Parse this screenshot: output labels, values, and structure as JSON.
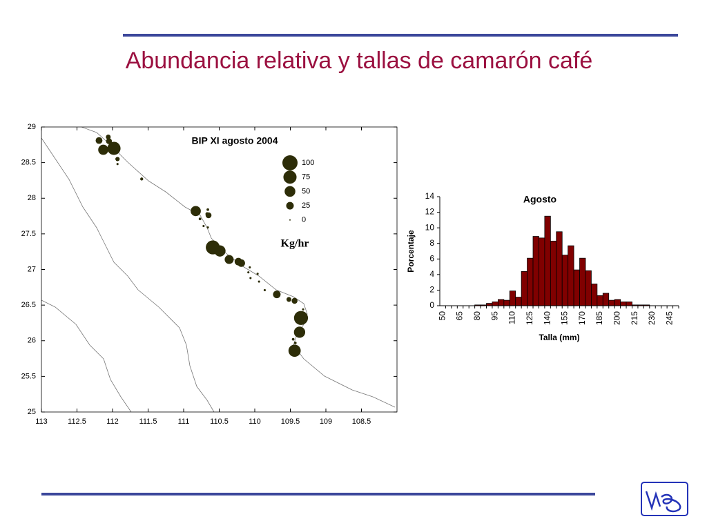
{
  "title": "Abundancia relativa y tallas de camarón café",
  "chart_data": [
    {
      "type": "bubble",
      "title": "BIP XI agosto 2004",
      "size_label": "Kg/hr",
      "color": "#2d2d08",
      "xlim": [
        113,
        108
      ],
      "xticks": [
        113,
        112.5,
        112,
        111.5,
        111,
        110.5,
        110,
        109.5,
        109,
        108.5
      ],
      "ylim": [
        25,
        29
      ],
      "yticks": [
        25,
        25.5,
        26,
        26.5,
        27,
        27.5,
        28,
        28.5,
        29
      ],
      "size_legend": [
        100,
        75,
        50,
        25,
        0
      ],
      "x": [
        112.19,
        112.06,
        112.05,
        112.13,
        111.98,
        111.93,
        111.93,
        111.59,
        110.83,
        110.77,
        110.67,
        110.66,
        110.65,
        110.72,
        110.66,
        110.59,
        110.49,
        110.36,
        110.23,
        110.19,
        110.07,
        110.09,
        110.06,
        109.96,
        109.94,
        109.86,
        109.69,
        109.52,
        109.44,
        109.35,
        109.37,
        109.32,
        109.46,
        109.43,
        109.44
      ],
      "y": [
        28.81,
        28.86,
        28.8,
        28.68,
        28.7,
        28.55,
        28.48,
        28.27,
        27.82,
        27.71,
        27.78,
        27.84,
        27.76,
        27.61,
        27.59,
        27.31,
        27.26,
        27.14,
        27.11,
        27.09,
        27.03,
        26.96,
        26.88,
        26.94,
        26.83,
        26.71,
        26.65,
        26.58,
        26.56,
        26.32,
        26.12,
        26.44,
        26.02,
        25.97,
        25.86
      ],
      "sizes": [
        20,
        10,
        15,
        45,
        75,
        8,
        2,
        4,
        45,
        3,
        5,
        3,
        15,
        2,
        2,
        85,
        55,
        35,
        25,
        25,
        2,
        2,
        2,
        2,
        2,
        2,
        25,
        10,
        15,
        85,
        55,
        2,
        3,
        3,
        65
      ]
    },
    {
      "type": "bar",
      "title": "Agosto",
      "x_label": "Talla (mm)",
      "y_label": "Porcentaje",
      "color": "#800000",
      "categories": [
        "50",
        null,
        null,
        "65",
        null,
        null,
        "80",
        null,
        null,
        "95",
        null,
        null,
        "110",
        null,
        null,
        "125",
        null,
        null,
        "140",
        null,
        null,
        "155",
        null,
        null,
        "170",
        null,
        null,
        "185",
        null,
        null,
        "200",
        null,
        null,
        "215",
        null,
        null,
        "230",
        null,
        null,
        "245",
        null
      ],
      "values": [
        0,
        0,
        0,
        0,
        0,
        0,
        0.1,
        0.1,
        0.3,
        0.5,
        0.8,
        0.7,
        1.9,
        1.1,
        4.4,
        6.1,
        8.9,
        8.7,
        11.5,
        8.3,
        9.5,
        6.5,
        7.7,
        4.6,
        6.1,
        4.5,
        2.8,
        1.3,
        1.6,
        0.7,
        0.8,
        0.5,
        0.5,
        0.1,
        0.1,
        0.1,
        0,
        0,
        0,
        0,
        0
      ],
      "ylim": [
        0,
        14
      ],
      "yticks": [
        0,
        2,
        4,
        6,
        8,
        10,
        12,
        14
      ]
    }
  ]
}
